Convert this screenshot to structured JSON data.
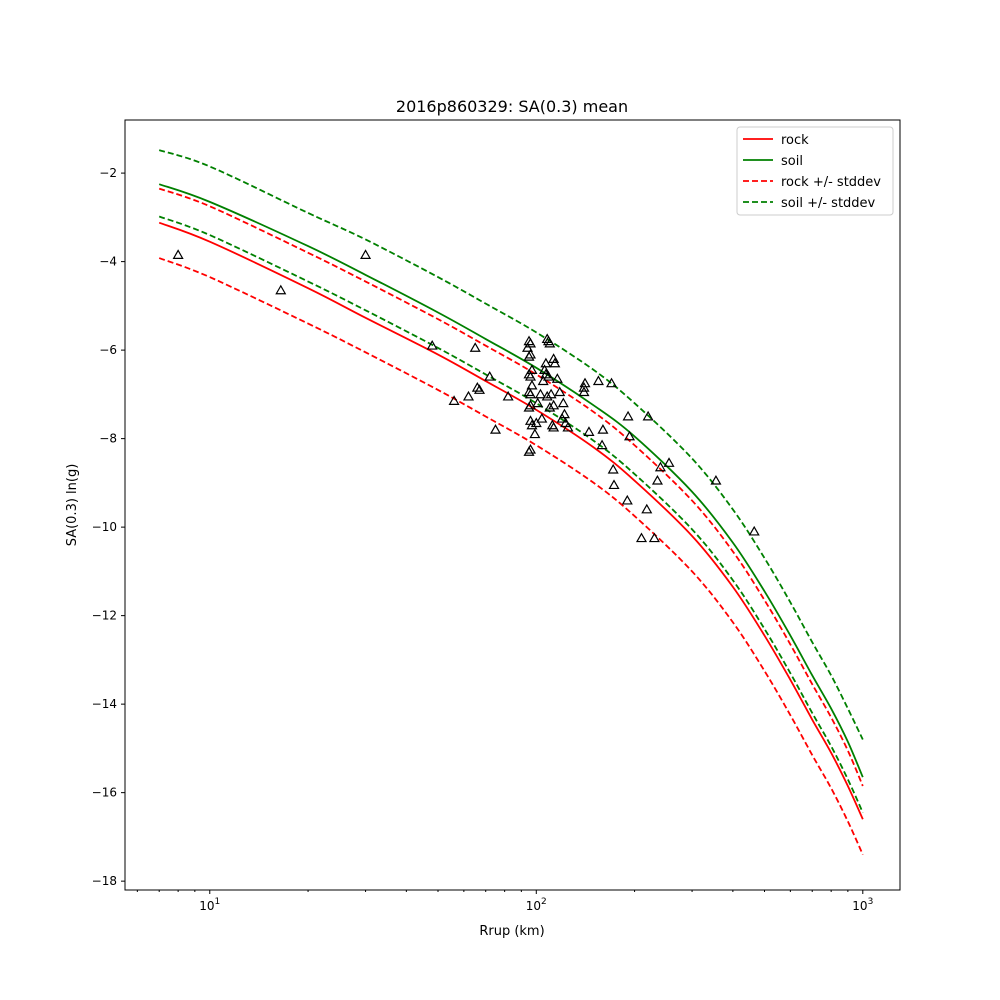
{
  "chart_data": {
    "type": "line",
    "title": "2016p860329: SA(0.3) mean",
    "xlabel": "Rrup (km)",
    "ylabel": "SA(0.3) ln(g)",
    "xscale": "log",
    "xlim": [
      5.5,
      1300
    ],
    "ylim": [
      -18.2,
      -0.8
    ],
    "xticks": [
      10,
      100,
      1000
    ],
    "xtick_labels": [
      {
        "base": "10",
        "exp": "1"
      },
      {
        "base": "10",
        "exp": "2"
      },
      {
        "base": "10",
        "exp": "3"
      }
    ],
    "yticks": [
      -18,
      -16,
      -14,
      -12,
      -10,
      -8,
      -6,
      -4,
      -2
    ],
    "ytick_labels": [
      "−18",
      "−16",
      "−14",
      "−12",
      "−10",
      "−8",
      "−6",
      "−4",
      "−2"
    ],
    "grid": false,
    "legend_position": "upper right",
    "series": [
      {
        "name": "rock",
        "color": "#ff0000",
        "style": "solid",
        "x": [
          7,
          10,
          20,
          30,
          50,
          70,
          100,
          150,
          200,
          300,
          400,
          500,
          600,
          700,
          800,
          900,
          1000
        ],
        "y": [
          -3.12,
          -3.55,
          -4.6,
          -5.27,
          -6.1,
          -6.7,
          -7.35,
          -8.2,
          -8.95,
          -10.2,
          -11.35,
          -12.45,
          -13.45,
          -14.35,
          -15.1,
          -15.85,
          -16.6
        ]
      },
      {
        "name": "soil",
        "color": "#008000",
        "style": "solid",
        "x": [
          7,
          10,
          20,
          30,
          50,
          70,
          100,
          150,
          200,
          300,
          400,
          500,
          600,
          700,
          800,
          900,
          1000
        ],
        "y": [
          -2.25,
          -2.65,
          -3.65,
          -4.3,
          -5.15,
          -5.75,
          -6.4,
          -7.25,
          -7.95,
          -9.2,
          -10.35,
          -11.45,
          -12.45,
          -13.35,
          -14.1,
          -14.85,
          -15.65
        ]
      },
      {
        "name": "rock +/- stddev",
        "color": "#ff0000",
        "style": "dashed",
        "x": [
          7,
          10,
          20,
          30,
          50,
          70,
          100,
          150,
          200,
          300,
          400,
          500,
          600,
          700,
          800,
          900,
          1000
        ],
        "y": [
          -2.35,
          -2.75,
          -3.8,
          -4.45,
          -5.3,
          -5.9,
          -6.55,
          -7.4,
          -8.15,
          -9.4,
          -10.55,
          -11.65,
          -12.65,
          -13.55,
          -14.3,
          -15.05,
          -15.85
        ]
      },
      {
        "name": "rock +/- stddev (lower)",
        "color": "#ff0000",
        "style": "dashed",
        "x": [
          7,
          10,
          20,
          30,
          50,
          70,
          100,
          150,
          200,
          300,
          400,
          500,
          600,
          700,
          800,
          900,
          1000
        ],
        "y": [
          -3.92,
          -4.35,
          -5.4,
          -6.05,
          -6.9,
          -7.5,
          -8.15,
          -9.0,
          -9.75,
          -11.0,
          -12.15,
          -13.25,
          -14.25,
          -15.15,
          -15.9,
          -16.65,
          -17.4
        ]
      },
      {
        "name": "soil +/- stddev",
        "color": "#008000",
        "style": "dashed",
        "x": [
          7,
          10,
          20,
          30,
          50,
          70,
          100,
          150,
          200,
          300,
          400,
          500,
          600,
          700,
          800,
          900,
          1000
        ],
        "y": [
          -1.48,
          -1.85,
          -2.9,
          -3.5,
          -4.35,
          -4.95,
          -5.6,
          -6.45,
          -7.2,
          -8.45,
          -9.6,
          -10.7,
          -11.7,
          -12.6,
          -13.35,
          -14.1,
          -14.8
        ]
      },
      {
        "name": "soil +/- stddev (lower)",
        "color": "#008000",
        "style": "dashed",
        "x": [
          7,
          10,
          20,
          30,
          50,
          70,
          100,
          150,
          200,
          300,
          400,
          500,
          600,
          700,
          800,
          900,
          1000
        ],
        "y": [
          -2.98,
          -3.4,
          -4.45,
          -5.1,
          -5.95,
          -6.55,
          -7.2,
          -8.05,
          -8.8,
          -10.05,
          -11.2,
          -12.3,
          -13.3,
          -14.2,
          -14.95,
          -15.7,
          -16.45
        ]
      }
    ],
    "observations": {
      "marker": "open-triangle",
      "color": "#000000",
      "points": [
        [
          8,
          -3.85
        ],
        [
          16.5,
          -4.65
        ],
        [
          30,
          -3.85
        ],
        [
          48,
          -5.9
        ],
        [
          56,
          -7.15
        ],
        [
          62,
          -7.05
        ],
        [
          65,
          -5.95
        ],
        [
          66,
          -6.85
        ],
        [
          67,
          -6.9
        ],
        [
          72,
          -6.6
        ],
        [
          75,
          -7.8
        ],
        [
          82,
          -7.05
        ],
        [
          94,
          -5.95
        ],
        [
          95,
          -5.8
        ],
        [
          95,
          -6.15
        ],
        [
          95,
          -6.55
        ],
        [
          95,
          -6.95
        ],
        [
          95,
          -7.3
        ],
        [
          95,
          -8.3
        ],
        [
          96,
          -5.85
        ],
        [
          96,
          -6.1
        ],
        [
          96,
          -6.6
        ],
        [
          96,
          -7.0
        ],
        [
          96,
          -7.25
        ],
        [
          96,
          -7.6
        ],
        [
          96,
          -8.25
        ],
        [
          97,
          -6.45
        ],
        [
          97,
          -6.8
        ],
        [
          97,
          -7.7
        ],
        [
          99,
          -7.9
        ],
        [
          100,
          -7.65
        ],
        [
          101,
          -7.2
        ],
        [
          103,
          -7.0
        ],
        [
          104,
          -7.55
        ],
        [
          105,
          -6.7
        ],
        [
          106,
          -6.45
        ],
        [
          107,
          -6.3
        ],
        [
          107,
          -6.55
        ],
        [
          108,
          -5.75
        ],
        [
          108,
          -7.05
        ],
        [
          109,
          -5.8
        ],
        [
          109,
          -6.6
        ],
        [
          110,
          -5.85
        ],
        [
          110,
          -7.3
        ],
        [
          111,
          -7.0
        ],
        [
          112,
          -7.7
        ],
        [
          113,
          -7.25
        ],
        [
          113,
          -6.2
        ],
        [
          113,
          -7.75
        ],
        [
          114,
          -6.3
        ],
        [
          116,
          -6.65
        ],
        [
          118,
          -6.95
        ],
        [
          120,
          -7.55
        ],
        [
          121,
          -7.2
        ],
        [
          122,
          -7.45
        ],
        [
          123,
          -7.65
        ],
        [
          125,
          -7.75
        ],
        [
          140,
          -6.85
        ],
        [
          140,
          -6.95
        ],
        [
          141,
          -6.75
        ],
        [
          145,
          -7.85
        ],
        [
          155,
          -6.7
        ],
        [
          159,
          -8.15
        ],
        [
          160,
          -7.8
        ],
        [
          170,
          -6.75
        ],
        [
          172,
          -8.7
        ],
        [
          173,
          -9.05
        ],
        [
          190,
          -9.4
        ],
        [
          191,
          -7.5
        ],
        [
          193,
          -7.95
        ],
        [
          210,
          -10.25
        ],
        [
          218,
          -9.6
        ],
        [
          220,
          -7.5
        ],
        [
          230,
          -10.25
        ],
        [
          235,
          -8.95
        ],
        [
          240,
          -8.65
        ],
        [
          255,
          -8.55
        ],
        [
          355,
          -8.95
        ],
        [
          465,
          -10.1
        ]
      ]
    }
  }
}
